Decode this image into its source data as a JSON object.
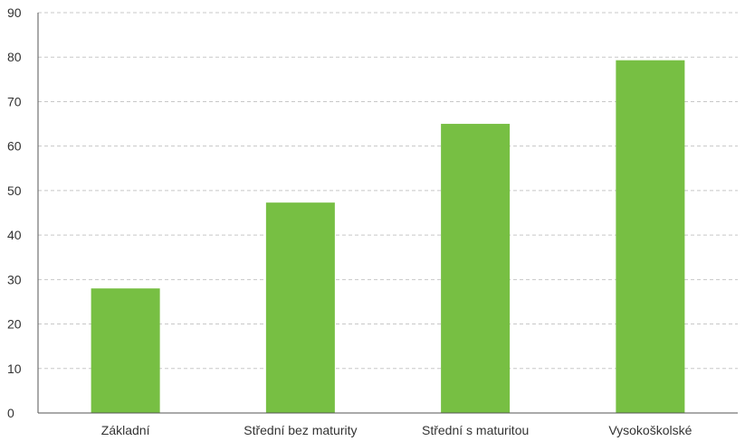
{
  "chart_data": {
    "type": "bar",
    "categories": [
      "Základní",
      "Střední bez maturity",
      "Střední s maturitou",
      "Vysokoškolské"
    ],
    "series": [
      {
        "values": [
          28,
          47.3,
          65,
          79.3
        ],
        "color": "#77bf43"
      }
    ],
    "title": "",
    "xlabel": "",
    "ylabel": "",
    "ylim": [
      0,
      90
    ],
    "yticks": [
      0,
      10,
      20,
      30,
      40,
      50,
      60,
      70,
      80,
      90
    ],
    "grid": true,
    "legend": "none",
    "colors": {
      "bar": "#77bf43",
      "grid": "#c8c8c8",
      "axis": "#555555",
      "text": "#333333"
    }
  }
}
